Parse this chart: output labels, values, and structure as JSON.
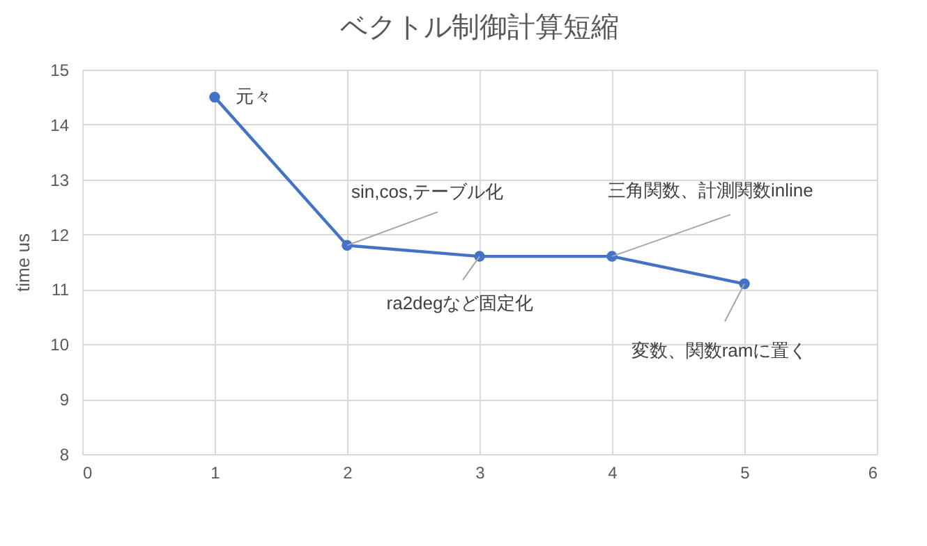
{
  "chart_data": {
    "type": "line",
    "title": "ベクトル制御計算短縮",
    "ylabel": "time us",
    "x": [
      1,
      2,
      3,
      4,
      5
    ],
    "series": [
      {
        "color": "#4472c4",
        "values": [
          14.5,
          11.8,
          11.6,
          11.6,
          11.1
        ]
      }
    ],
    "xlim": [
      0,
      6
    ],
    "xticks": [
      0,
      1,
      2,
      3,
      4,
      5,
      6
    ],
    "ylim": [
      8,
      15
    ],
    "yticks": [
      8,
      9,
      10,
      11,
      12,
      13,
      14,
      15
    ],
    "grid": true,
    "marker": "circle",
    "line_style": "solid",
    "annotations": [
      {
        "text": "元々",
        "x": 1,
        "y": 14.5
      },
      {
        "text": "sin,cos,テーブル化",
        "x": 2,
        "y": 11.8
      },
      {
        "text": "ra2degなど固定化",
        "x": 3,
        "y": 11.6
      },
      {
        "text": "三角関数、計測関数inline",
        "x": 4,
        "y": 11.6
      },
      {
        "text": "変数、関数ramに置く",
        "x": 5,
        "y": 11.1
      }
    ]
  }
}
